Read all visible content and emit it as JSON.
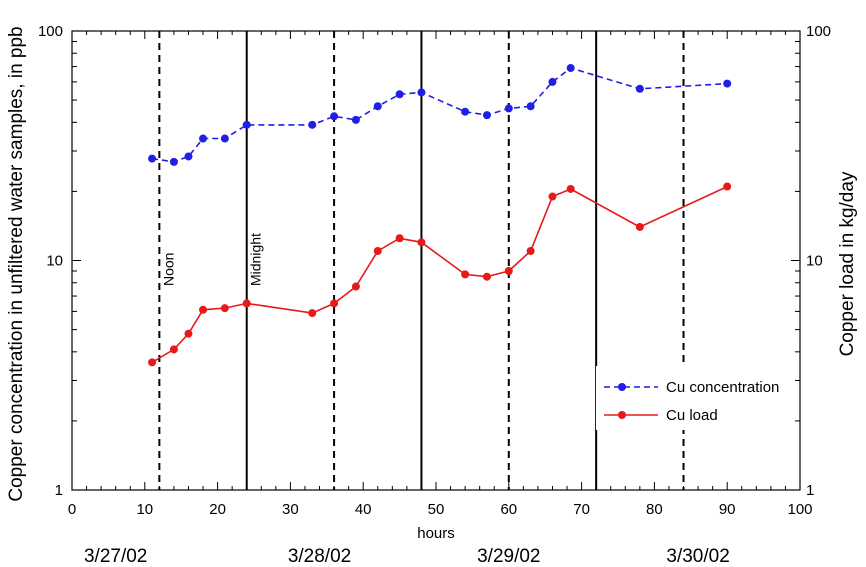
{
  "chart_data": {
    "type": "line",
    "title": "",
    "xlabel": "hours",
    "ylabel_left": "Copper concentration in unfiltered water samples, in ppb",
    "ylabel_right": "Copper load in kg/day",
    "xlim": [
      0,
      100
    ],
    "ylim": [
      1,
      100
    ],
    "yscale": "log",
    "x_ticks": [
      "0",
      "10",
      "20",
      "30",
      "40",
      "50",
      "60",
      "70",
      "80",
      "90",
      "100"
    ],
    "y_ticks_left": [
      "1",
      "10",
      "100"
    ],
    "y_ticks_right": [
      "1",
      "10",
      "100"
    ],
    "grid": false,
    "legend_position": "lower-right",
    "series": [
      {
        "name": "Cu concentration",
        "color": "#1f1fe6",
        "line_style": "dashed",
        "x": [
          11,
          14,
          16,
          18,
          21,
          24,
          33,
          36,
          39,
          42,
          45,
          48,
          54,
          57,
          60,
          63,
          66,
          68.5,
          78,
          90
        ],
        "y": [
          27.8,
          26.9,
          28.4,
          34.0,
          34.0,
          39.0,
          39.0,
          42.5,
          41.0,
          47.0,
          53.0,
          54.0,
          44.5,
          43.0,
          46.0,
          47.0,
          60.0,
          69.0,
          56.0,
          59.0
        ]
      },
      {
        "name": "Cu load",
        "color": "#e61a1a",
        "line_style": "solid",
        "x": [
          11,
          14,
          16,
          18,
          21,
          24,
          33,
          36,
          39,
          42,
          45,
          48,
          54,
          57,
          60,
          63,
          66,
          68.5,
          78,
          90
        ],
        "y": [
          3.6,
          4.1,
          4.8,
          6.1,
          6.2,
          6.5,
          5.9,
          6.5,
          7.7,
          11.0,
          12.5,
          12.0,
          8.7,
          8.5,
          9.0,
          11.0,
          19.0,
          20.5,
          14.0,
          21.0
        ]
      }
    ],
    "reference_lines": [
      {
        "x": 12,
        "style": "dashed",
        "label": "Noon"
      },
      {
        "x": 24,
        "style": "solid",
        "label": "Midnight"
      },
      {
        "x": 36,
        "style": "dashed",
        "label": ""
      },
      {
        "x": 48,
        "style": "solid",
        "label": ""
      },
      {
        "x": 60,
        "style": "dashed",
        "label": ""
      },
      {
        "x": 72,
        "style": "solid",
        "label": ""
      },
      {
        "x": 84,
        "style": "dashed",
        "label": ""
      }
    ],
    "date_labels": [
      {
        "x": 6,
        "text": "3/27/02"
      },
      {
        "x": 34,
        "text": "3/28/02"
      },
      {
        "x": 60,
        "text": "3/29/02"
      },
      {
        "x": 86,
        "text": "3/30/02"
      }
    ]
  }
}
